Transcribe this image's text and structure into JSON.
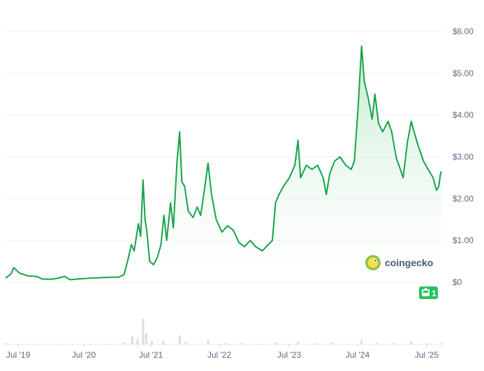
{
  "watermark": {
    "brand_text": "coingecko",
    "icon": "coingecko-gecko-icon"
  },
  "badge": {
    "icon": "gecko-badge-icon",
    "value": "1"
  },
  "colors": {
    "line": "#16a34a",
    "area_top": "#bde8c8",
    "area_bottom": "#ffffff",
    "grid": "#eef0f3",
    "tick_text": "#5b6b82",
    "volume": "#d8dde4",
    "badge_bg": "#22c55e",
    "brand_text": "#4a5a70"
  },
  "chart_data": {
    "type": "area",
    "title": "",
    "xlabel": "",
    "ylabel": "",
    "x_ticks": [
      "Jul '19",
      "Jul '20",
      "Jul '21",
      "Jul '22",
      "Jul '23",
      "Jul '24",
      "Jul '25"
    ],
    "y_ticks": [
      "$0",
      "$1.00",
      "$2.00",
      "$3.00",
      "$4.00",
      "$5.00",
      "$6.00"
    ],
    "ylim": [
      0,
      6
    ],
    "xlim": [
      "2019-04-01",
      "2025-09-15"
    ],
    "grid": true,
    "y_axis_position": "right",
    "series": [
      {
        "values": [
          [
            "2019-04-01",
            0.1
          ],
          [
            "2019-05-01",
            0.2
          ],
          [
            "2019-05-15",
            0.35
          ],
          [
            "2019-06-15",
            0.22
          ],
          [
            "2019-08-01",
            0.15
          ],
          [
            "2019-09-15",
            0.14
          ],
          [
            "2019-10-15",
            0.08
          ],
          [
            "2019-12-01",
            0.07
          ],
          [
            "2020-01-01",
            0.09
          ],
          [
            "2020-02-15",
            0.14
          ],
          [
            "2020-03-15",
            0.06
          ],
          [
            "2020-05-01",
            0.08
          ],
          [
            "2020-07-01",
            0.1
          ],
          [
            "2020-09-01",
            0.11
          ],
          [
            "2020-11-01",
            0.12
          ],
          [
            "2020-12-01",
            0.12
          ],
          [
            "2021-01-01",
            0.18
          ],
          [
            "2021-01-20",
            0.5
          ],
          [
            "2021-02-10",
            0.9
          ],
          [
            "2021-02-25",
            0.75
          ],
          [
            "2021-03-20",
            1.4
          ],
          [
            "2021-04-01",
            1.1
          ],
          [
            "2021-04-14",
            2.45
          ],
          [
            "2021-04-25",
            1.5
          ],
          [
            "2021-05-05",
            1.2
          ],
          [
            "2021-05-20",
            0.5
          ],
          [
            "2021-06-10",
            0.42
          ],
          [
            "2021-07-01",
            0.6
          ],
          [
            "2021-07-20",
            0.9
          ],
          [
            "2021-08-05",
            1.6
          ],
          [
            "2021-08-20",
            1.0
          ],
          [
            "2021-09-10",
            1.9
          ],
          [
            "2021-09-25",
            1.3
          ],
          [
            "2021-10-15",
            2.9
          ],
          [
            "2021-10-29",
            3.6
          ],
          [
            "2021-11-10",
            2.4
          ],
          [
            "2021-11-25",
            2.3
          ],
          [
            "2021-12-15",
            1.7
          ],
          [
            "2022-01-10",
            1.55
          ],
          [
            "2022-02-01",
            1.8
          ],
          [
            "2022-02-20",
            1.6
          ],
          [
            "2022-03-15",
            2.3
          ],
          [
            "2022-04-01",
            2.85
          ],
          [
            "2022-04-20",
            2.1
          ],
          [
            "2022-05-15",
            1.5
          ],
          [
            "2022-06-15",
            1.2
          ],
          [
            "2022-07-15",
            1.35
          ],
          [
            "2022-08-15",
            1.25
          ],
          [
            "2022-09-15",
            0.95
          ],
          [
            "2022-10-15",
            0.85
          ],
          [
            "2022-11-15",
            1.0
          ],
          [
            "2022-12-15",
            0.85
          ],
          [
            "2023-01-20",
            0.75
          ],
          [
            "2023-02-20",
            0.9
          ],
          [
            "2023-03-15",
            1.0
          ],
          [
            "2023-04-01",
            1.9
          ],
          [
            "2023-04-20",
            2.1
          ],
          [
            "2023-05-15",
            2.3
          ],
          [
            "2023-06-15",
            2.5
          ],
          [
            "2023-07-15",
            2.8
          ],
          [
            "2023-08-01",
            3.4
          ],
          [
            "2023-08-15",
            2.5
          ],
          [
            "2023-09-15",
            2.8
          ],
          [
            "2023-10-15",
            2.7
          ],
          [
            "2023-11-15",
            2.8
          ],
          [
            "2023-12-15",
            2.5
          ],
          [
            "2024-01-01",
            2.1
          ],
          [
            "2024-01-20",
            2.6
          ],
          [
            "2024-02-15",
            2.9
          ],
          [
            "2024-03-15",
            3.0
          ],
          [
            "2024-04-15",
            2.8
          ],
          [
            "2024-05-15",
            2.7
          ],
          [
            "2024-06-01",
            2.9
          ],
          [
            "2024-06-20",
            4.1
          ],
          [
            "2024-07-10",
            5.65
          ],
          [
            "2024-07-25",
            4.8
          ],
          [
            "2024-08-15",
            4.4
          ],
          [
            "2024-09-05",
            3.9
          ],
          [
            "2024-09-20",
            4.5
          ],
          [
            "2024-10-10",
            3.8
          ],
          [
            "2024-11-01",
            3.6
          ],
          [
            "2024-12-01",
            3.85
          ],
          [
            "2024-12-20",
            3.6
          ],
          [
            "2025-01-15",
            2.95
          ],
          [
            "2025-02-05",
            2.7
          ],
          [
            "2025-02-20",
            2.5
          ],
          [
            "2025-03-15",
            3.35
          ],
          [
            "2025-04-05",
            3.85
          ],
          [
            "2025-04-20",
            3.6
          ],
          [
            "2025-05-10",
            3.3
          ],
          [
            "2025-06-10",
            2.9
          ],
          [
            "2025-07-05",
            2.7
          ],
          [
            "2025-08-01",
            2.5
          ],
          [
            "2025-08-20",
            2.2
          ],
          [
            "2025-09-01",
            2.3
          ],
          [
            "2025-09-10",
            2.6
          ],
          [
            "2025-09-15",
            2.65
          ]
        ]
      }
    ],
    "volume": {
      "values": [
        [
          "2019-04-01",
          2
        ],
        [
          "2019-07-01",
          1
        ],
        [
          "2019-10-01",
          1
        ],
        [
          "2020-01-01",
          1
        ],
        [
          "2020-04-01",
          1
        ],
        [
          "2020-07-01",
          1
        ],
        [
          "2020-10-01",
          1
        ],
        [
          "2021-01-01",
          3
        ],
        [
          "2021-02-15",
          12
        ],
        [
          "2021-03-15",
          8
        ],
        [
          "2021-04-14",
          40
        ],
        [
          "2021-05-01",
          18
        ],
        [
          "2021-06-01",
          5
        ],
        [
          "2021-08-01",
          6
        ],
        [
          "2021-10-29",
          14
        ],
        [
          "2021-12-01",
          4
        ],
        [
          "2022-04-01",
          6
        ],
        [
          "2022-07-01",
          2
        ],
        [
          "2022-10-01",
          2
        ],
        [
          "2023-01-01",
          1
        ],
        [
          "2023-04-01",
          3
        ],
        [
          "2023-08-01",
          4
        ],
        [
          "2023-11-01",
          2
        ],
        [
          "2024-02-01",
          3
        ],
        [
          "2024-07-10",
          7
        ],
        [
          "2024-10-01",
          3
        ],
        [
          "2025-01-01",
          2
        ],
        [
          "2025-04-05",
          5
        ],
        [
          "2025-07-01",
          2
        ],
        [
          "2025-09-15",
          2
        ]
      ],
      "max": 60
    }
  }
}
